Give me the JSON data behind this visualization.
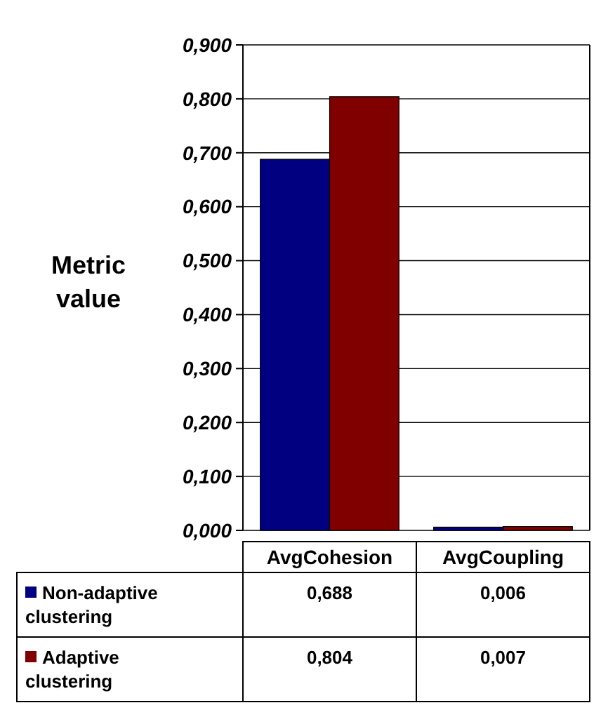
{
  "chart_data": {
    "type": "bar",
    "ylabel": "Metric value",
    "categories": [
      "AvgCohesion",
      "AvgCoupling"
    ],
    "series": [
      {
        "name": "Non-adaptive clustering",
        "color": "#000080",
        "values": [
          0.688,
          0.006
        ],
        "value_labels": [
          "0,688",
          "0,006"
        ]
      },
      {
        "name": "Adaptive clustering",
        "color": "#800000",
        "values": [
          0.804,
          0.007
        ],
        "value_labels": [
          "0,804",
          "0,007"
        ]
      }
    ],
    "ylim": [
      0,
      0.9
    ],
    "yticks": [
      {
        "value": 0,
        "label": "0,000"
      },
      {
        "value": 0.1,
        "label": "0,100"
      },
      {
        "value": 0.2,
        "label": "0,200"
      },
      {
        "value": 0.3,
        "label": "0,300"
      },
      {
        "value": 0.4,
        "label": "0,400"
      },
      {
        "value": 0.5,
        "label": "0,500"
      },
      {
        "value": 0.6,
        "label": "0,600"
      },
      {
        "value": 0.7,
        "label": "0,700"
      },
      {
        "value": 0.8,
        "label": "0,800"
      },
      {
        "value": 0.9,
        "label": "0,900"
      }
    ],
    "grid": "y",
    "legend": "bottom"
  }
}
